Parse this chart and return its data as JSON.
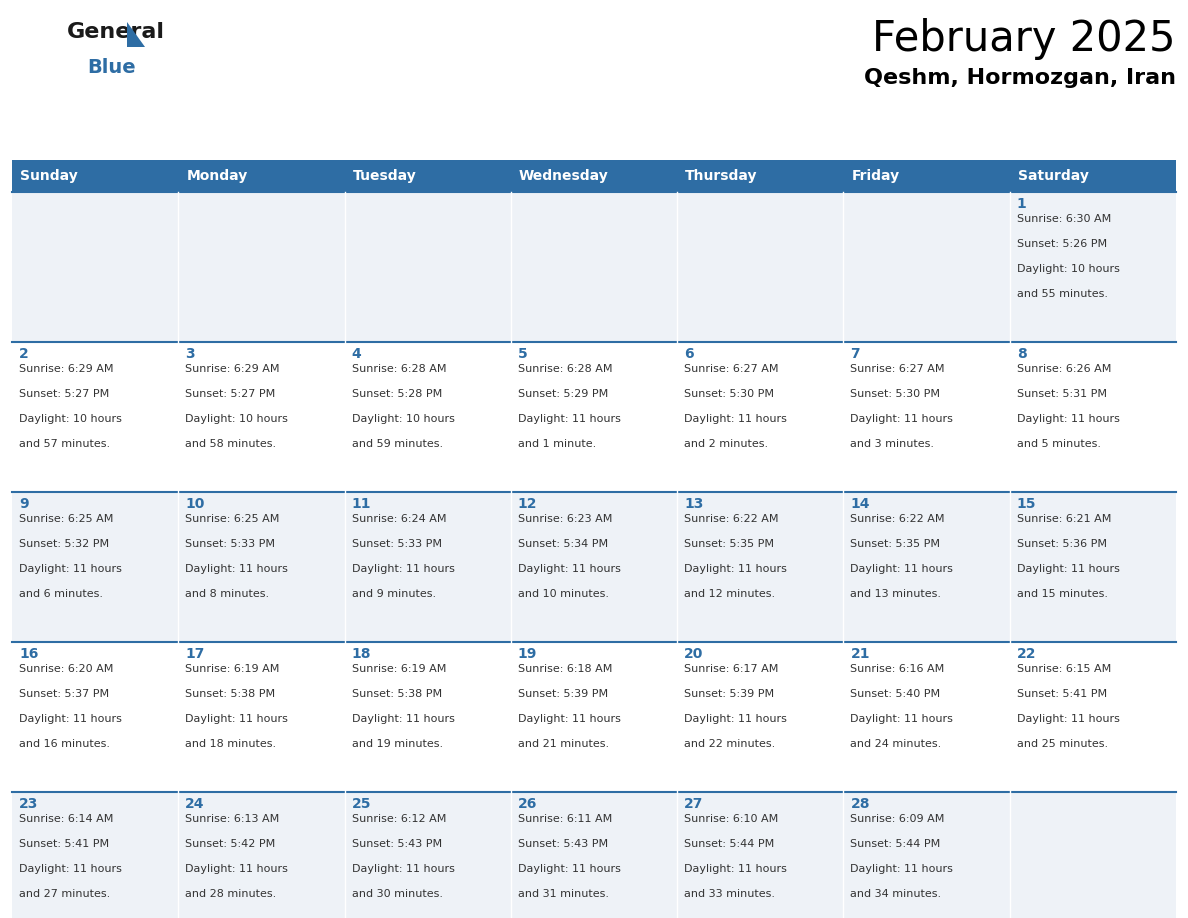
{
  "title": "February 2025",
  "subtitle": "Qeshm, Hormozgan, Iran",
  "days_of_week": [
    "Sunday",
    "Monday",
    "Tuesday",
    "Wednesday",
    "Thursday",
    "Friday",
    "Saturday"
  ],
  "header_bg": "#2e6da4",
  "header_text": "#ffffff",
  "cell_bg": "#eef2f7",
  "cell_bg_alt": "#ffffff",
  "line_color": "#2e6da4",
  "day_number_color": "#2e6da4",
  "text_color": "#333333",
  "logo_general_color": "#1a1a1a",
  "logo_blue_color": "#2e6da4",
  "weeks": [
    [
      null,
      null,
      null,
      null,
      null,
      null,
      {
        "day": 1,
        "sunrise": "6:30 AM",
        "sunset": "5:26 PM",
        "daylight": "10 hours",
        "daylight2": "and 55 minutes."
      }
    ],
    [
      {
        "day": 2,
        "sunrise": "6:29 AM",
        "sunset": "5:27 PM",
        "daylight": "10 hours",
        "daylight2": "and 57 minutes."
      },
      {
        "day": 3,
        "sunrise": "6:29 AM",
        "sunset": "5:27 PM",
        "daylight": "10 hours",
        "daylight2": "and 58 minutes."
      },
      {
        "day": 4,
        "sunrise": "6:28 AM",
        "sunset": "5:28 PM",
        "daylight": "10 hours",
        "daylight2": "and 59 minutes."
      },
      {
        "day": 5,
        "sunrise": "6:28 AM",
        "sunset": "5:29 PM",
        "daylight": "11 hours",
        "daylight2": "and 1 minute."
      },
      {
        "day": 6,
        "sunrise": "6:27 AM",
        "sunset": "5:30 PM",
        "daylight": "11 hours",
        "daylight2": "and 2 minutes."
      },
      {
        "day": 7,
        "sunrise": "6:27 AM",
        "sunset": "5:30 PM",
        "daylight": "11 hours",
        "daylight2": "and 3 minutes."
      },
      {
        "day": 8,
        "sunrise": "6:26 AM",
        "sunset": "5:31 PM",
        "daylight": "11 hours",
        "daylight2": "and 5 minutes."
      }
    ],
    [
      {
        "day": 9,
        "sunrise": "6:25 AM",
        "sunset": "5:32 PM",
        "daylight": "11 hours",
        "daylight2": "and 6 minutes."
      },
      {
        "day": 10,
        "sunrise": "6:25 AM",
        "sunset": "5:33 PM",
        "daylight": "11 hours",
        "daylight2": "and 8 minutes."
      },
      {
        "day": 11,
        "sunrise": "6:24 AM",
        "sunset": "5:33 PM",
        "daylight": "11 hours",
        "daylight2": "and 9 minutes."
      },
      {
        "day": 12,
        "sunrise": "6:23 AM",
        "sunset": "5:34 PM",
        "daylight": "11 hours",
        "daylight2": "and 10 minutes."
      },
      {
        "day": 13,
        "sunrise": "6:22 AM",
        "sunset": "5:35 PM",
        "daylight": "11 hours",
        "daylight2": "and 12 minutes."
      },
      {
        "day": 14,
        "sunrise": "6:22 AM",
        "sunset": "5:35 PM",
        "daylight": "11 hours",
        "daylight2": "and 13 minutes."
      },
      {
        "day": 15,
        "sunrise": "6:21 AM",
        "sunset": "5:36 PM",
        "daylight": "11 hours",
        "daylight2": "and 15 minutes."
      }
    ],
    [
      {
        "day": 16,
        "sunrise": "6:20 AM",
        "sunset": "5:37 PM",
        "daylight": "11 hours",
        "daylight2": "and 16 minutes."
      },
      {
        "day": 17,
        "sunrise": "6:19 AM",
        "sunset": "5:38 PM",
        "daylight": "11 hours",
        "daylight2": "and 18 minutes."
      },
      {
        "day": 18,
        "sunrise": "6:19 AM",
        "sunset": "5:38 PM",
        "daylight": "11 hours",
        "daylight2": "and 19 minutes."
      },
      {
        "day": 19,
        "sunrise": "6:18 AM",
        "sunset": "5:39 PM",
        "daylight": "11 hours",
        "daylight2": "and 21 minutes."
      },
      {
        "day": 20,
        "sunrise": "6:17 AM",
        "sunset": "5:39 PM",
        "daylight": "11 hours",
        "daylight2": "and 22 minutes."
      },
      {
        "day": 21,
        "sunrise": "6:16 AM",
        "sunset": "5:40 PM",
        "daylight": "11 hours",
        "daylight2": "and 24 minutes."
      },
      {
        "day": 22,
        "sunrise": "6:15 AM",
        "sunset": "5:41 PM",
        "daylight": "11 hours",
        "daylight2": "and 25 minutes."
      }
    ],
    [
      {
        "day": 23,
        "sunrise": "6:14 AM",
        "sunset": "5:41 PM",
        "daylight": "11 hours",
        "daylight2": "and 27 minutes."
      },
      {
        "day": 24,
        "sunrise": "6:13 AM",
        "sunset": "5:42 PM",
        "daylight": "11 hours",
        "daylight2": "and 28 minutes."
      },
      {
        "day": 25,
        "sunrise": "6:12 AM",
        "sunset": "5:43 PM",
        "daylight": "11 hours",
        "daylight2": "and 30 minutes."
      },
      {
        "day": 26,
        "sunrise": "6:11 AM",
        "sunset": "5:43 PM",
        "daylight": "11 hours",
        "daylight2": "and 31 minutes."
      },
      {
        "day": 27,
        "sunrise": "6:10 AM",
        "sunset": "5:44 PM",
        "daylight": "11 hours",
        "daylight2": "and 33 minutes."
      },
      {
        "day": 28,
        "sunrise": "6:09 AM",
        "sunset": "5:44 PM",
        "daylight": "11 hours",
        "daylight2": "and 34 minutes."
      },
      null
    ]
  ]
}
